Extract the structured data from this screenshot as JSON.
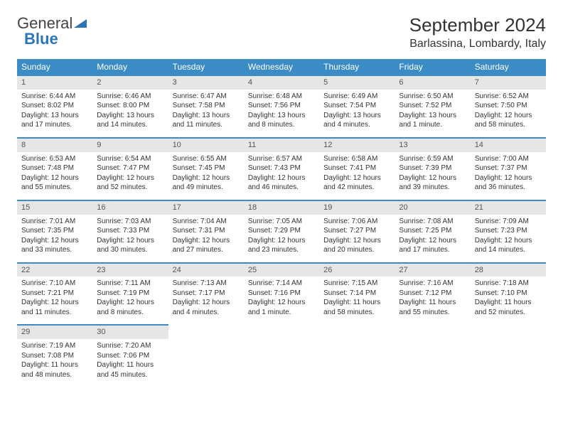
{
  "logo": {
    "text1": "General",
    "text2": "Blue"
  },
  "title": "September 2024",
  "location": "Barlassina, Lombardy, Italy",
  "colors": {
    "header_bg": "#3b8bc4",
    "header_text": "#ffffff",
    "daynum_bg": "#e6e6e6",
    "border_top": "#3b8bc4",
    "text": "#333333",
    "logo_blue": "#2e75b6"
  },
  "day_headers": [
    "Sunday",
    "Monday",
    "Tuesday",
    "Wednesday",
    "Thursday",
    "Friday",
    "Saturday"
  ],
  "weeks": [
    [
      {
        "n": "1",
        "sr": "Sunrise: 6:44 AM",
        "ss": "Sunset: 8:02 PM",
        "dl": "Daylight: 13 hours and 17 minutes."
      },
      {
        "n": "2",
        "sr": "Sunrise: 6:46 AM",
        "ss": "Sunset: 8:00 PM",
        "dl": "Daylight: 13 hours and 14 minutes."
      },
      {
        "n": "3",
        "sr": "Sunrise: 6:47 AM",
        "ss": "Sunset: 7:58 PM",
        "dl": "Daylight: 13 hours and 11 minutes."
      },
      {
        "n": "4",
        "sr": "Sunrise: 6:48 AM",
        "ss": "Sunset: 7:56 PM",
        "dl": "Daylight: 13 hours and 8 minutes."
      },
      {
        "n": "5",
        "sr": "Sunrise: 6:49 AM",
        "ss": "Sunset: 7:54 PM",
        "dl": "Daylight: 13 hours and 4 minutes."
      },
      {
        "n": "6",
        "sr": "Sunrise: 6:50 AM",
        "ss": "Sunset: 7:52 PM",
        "dl": "Daylight: 13 hours and 1 minute."
      },
      {
        "n": "7",
        "sr": "Sunrise: 6:52 AM",
        "ss": "Sunset: 7:50 PM",
        "dl": "Daylight: 12 hours and 58 minutes."
      }
    ],
    [
      {
        "n": "8",
        "sr": "Sunrise: 6:53 AM",
        "ss": "Sunset: 7:48 PM",
        "dl": "Daylight: 12 hours and 55 minutes."
      },
      {
        "n": "9",
        "sr": "Sunrise: 6:54 AM",
        "ss": "Sunset: 7:47 PM",
        "dl": "Daylight: 12 hours and 52 minutes."
      },
      {
        "n": "10",
        "sr": "Sunrise: 6:55 AM",
        "ss": "Sunset: 7:45 PM",
        "dl": "Daylight: 12 hours and 49 minutes."
      },
      {
        "n": "11",
        "sr": "Sunrise: 6:57 AM",
        "ss": "Sunset: 7:43 PM",
        "dl": "Daylight: 12 hours and 46 minutes."
      },
      {
        "n": "12",
        "sr": "Sunrise: 6:58 AM",
        "ss": "Sunset: 7:41 PM",
        "dl": "Daylight: 12 hours and 42 minutes."
      },
      {
        "n": "13",
        "sr": "Sunrise: 6:59 AM",
        "ss": "Sunset: 7:39 PM",
        "dl": "Daylight: 12 hours and 39 minutes."
      },
      {
        "n": "14",
        "sr": "Sunrise: 7:00 AM",
        "ss": "Sunset: 7:37 PM",
        "dl": "Daylight: 12 hours and 36 minutes."
      }
    ],
    [
      {
        "n": "15",
        "sr": "Sunrise: 7:01 AM",
        "ss": "Sunset: 7:35 PM",
        "dl": "Daylight: 12 hours and 33 minutes."
      },
      {
        "n": "16",
        "sr": "Sunrise: 7:03 AM",
        "ss": "Sunset: 7:33 PM",
        "dl": "Daylight: 12 hours and 30 minutes."
      },
      {
        "n": "17",
        "sr": "Sunrise: 7:04 AM",
        "ss": "Sunset: 7:31 PM",
        "dl": "Daylight: 12 hours and 27 minutes."
      },
      {
        "n": "18",
        "sr": "Sunrise: 7:05 AM",
        "ss": "Sunset: 7:29 PM",
        "dl": "Daylight: 12 hours and 23 minutes."
      },
      {
        "n": "19",
        "sr": "Sunrise: 7:06 AM",
        "ss": "Sunset: 7:27 PM",
        "dl": "Daylight: 12 hours and 20 minutes."
      },
      {
        "n": "20",
        "sr": "Sunrise: 7:08 AM",
        "ss": "Sunset: 7:25 PM",
        "dl": "Daylight: 12 hours and 17 minutes."
      },
      {
        "n": "21",
        "sr": "Sunrise: 7:09 AM",
        "ss": "Sunset: 7:23 PM",
        "dl": "Daylight: 12 hours and 14 minutes."
      }
    ],
    [
      {
        "n": "22",
        "sr": "Sunrise: 7:10 AM",
        "ss": "Sunset: 7:21 PM",
        "dl": "Daylight: 12 hours and 11 minutes."
      },
      {
        "n": "23",
        "sr": "Sunrise: 7:11 AM",
        "ss": "Sunset: 7:19 PM",
        "dl": "Daylight: 12 hours and 8 minutes."
      },
      {
        "n": "24",
        "sr": "Sunrise: 7:13 AM",
        "ss": "Sunset: 7:17 PM",
        "dl": "Daylight: 12 hours and 4 minutes."
      },
      {
        "n": "25",
        "sr": "Sunrise: 7:14 AM",
        "ss": "Sunset: 7:16 PM",
        "dl": "Daylight: 12 hours and 1 minute."
      },
      {
        "n": "26",
        "sr": "Sunrise: 7:15 AM",
        "ss": "Sunset: 7:14 PM",
        "dl": "Daylight: 11 hours and 58 minutes."
      },
      {
        "n": "27",
        "sr": "Sunrise: 7:16 AM",
        "ss": "Sunset: 7:12 PM",
        "dl": "Daylight: 11 hours and 55 minutes."
      },
      {
        "n": "28",
        "sr": "Sunrise: 7:18 AM",
        "ss": "Sunset: 7:10 PM",
        "dl": "Daylight: 11 hours and 52 minutes."
      }
    ],
    [
      {
        "n": "29",
        "sr": "Sunrise: 7:19 AM",
        "ss": "Sunset: 7:08 PM",
        "dl": "Daylight: 11 hours and 48 minutes."
      },
      {
        "n": "30",
        "sr": "Sunrise: 7:20 AM",
        "ss": "Sunset: 7:06 PM",
        "dl": "Daylight: 11 hours and 45 minutes."
      },
      null,
      null,
      null,
      null,
      null
    ]
  ]
}
